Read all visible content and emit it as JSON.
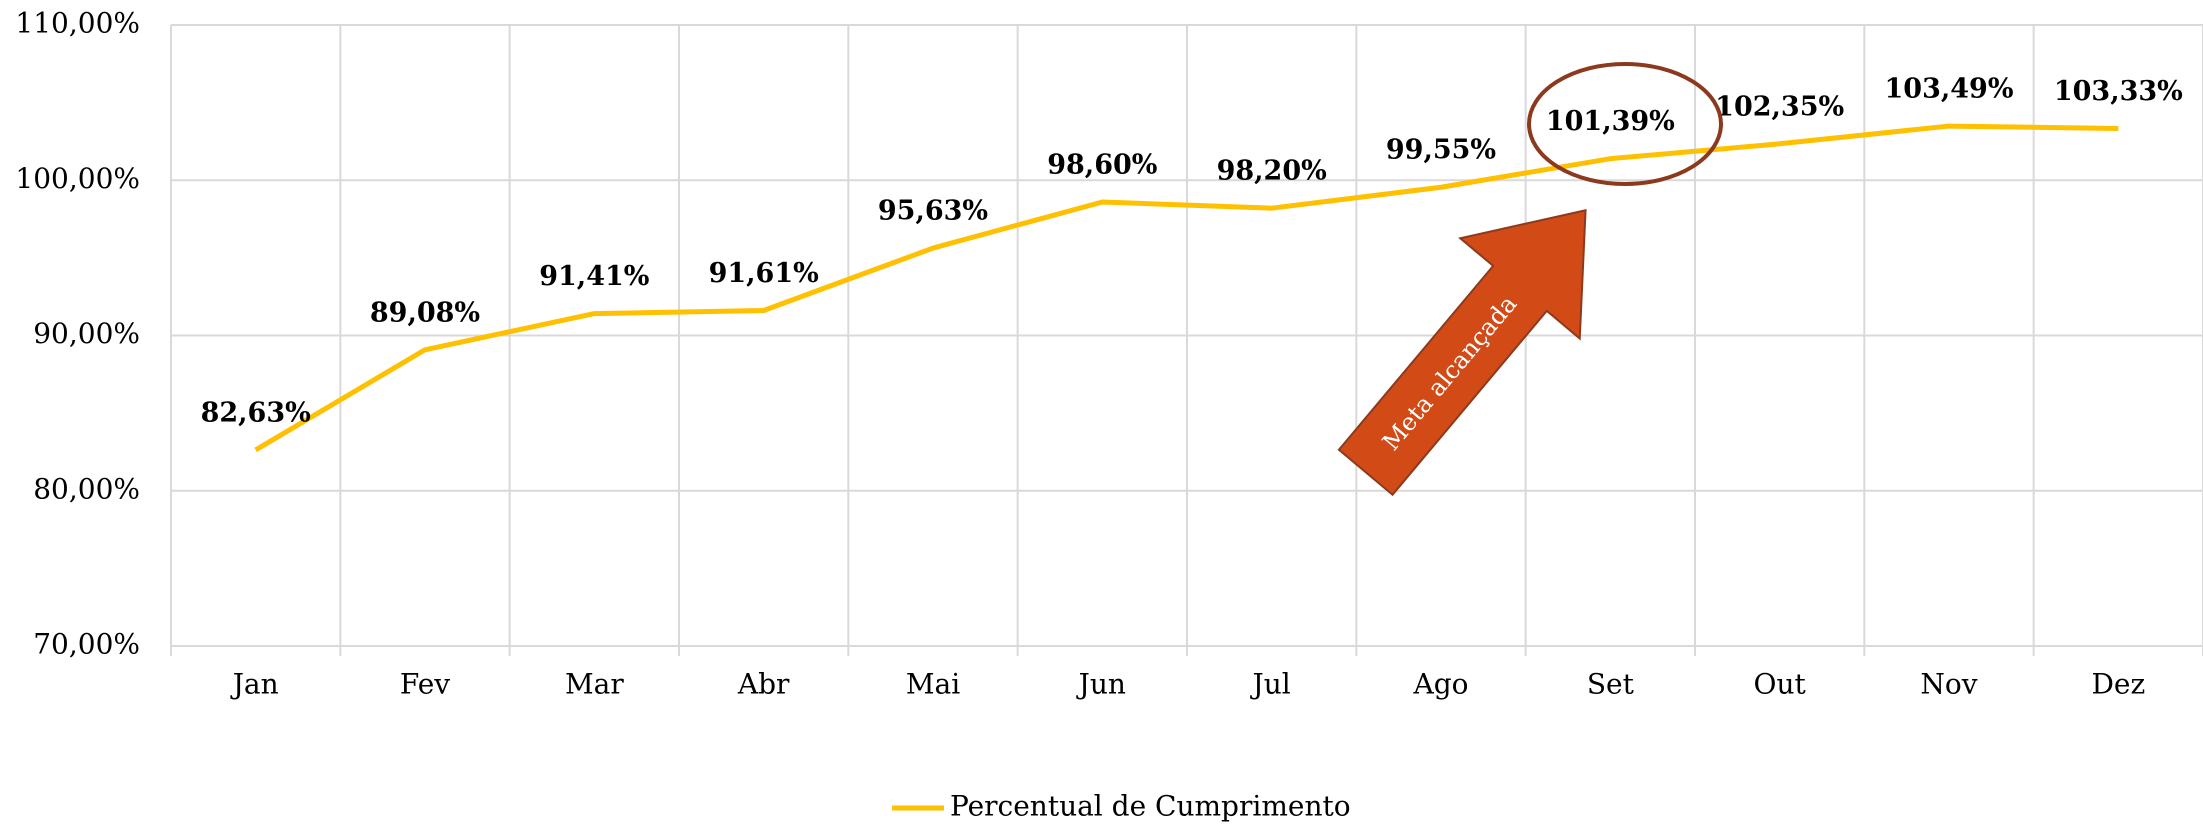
{
  "chart_data": {
    "type": "line",
    "categories": [
      "Jan",
      "Fev",
      "Mar",
      "Abr",
      "Mai",
      "Jun",
      "Jul",
      "Ago",
      "Set",
      "Out",
      "Nov",
      "Dez"
    ],
    "series": [
      {
        "name": "Percentual de Cumprimento",
        "color": "#FFC000",
        "values": [
          82.63,
          89.08,
          91.41,
          91.61,
          95.63,
          98.6,
          98.2,
          99.55,
          101.39,
          102.35,
          103.49,
          103.33
        ],
        "value_labels": [
          "82,63%",
          "89,08%",
          "91,41%",
          "91,61%",
          "95,63%",
          "98,60%",
          "98,20%",
          "99,55%",
          "101,39%",
          "102,35%",
          "103,49%",
          "103,33%"
        ]
      }
    ],
    "ylim": [
      70,
      110
    ],
    "yticks": [
      {
        "value": 70,
        "label": "70,00%"
      },
      {
        "value": 80,
        "label": "80,00%"
      },
      {
        "value": 90,
        "label": "90,00%"
      },
      {
        "value": 100,
        "label": "100,00%"
      },
      {
        "value": 110,
        "label": "110,00%"
      }
    ],
    "grid": true,
    "legend": "bottom",
    "annotations": [
      "Meta alcançada"
    ]
  }
}
